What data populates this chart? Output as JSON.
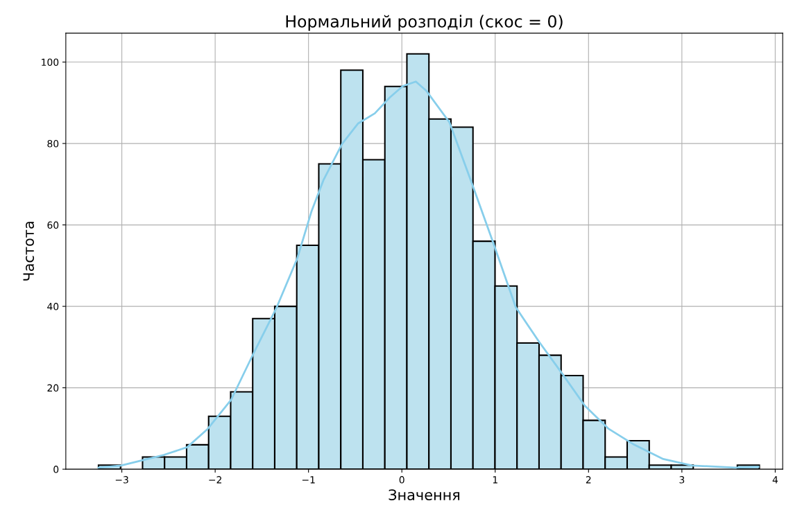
{
  "chart_data": {
    "type": "histogram",
    "title": "Нормальний розподіл (скос = 0)",
    "xlabel": "Значення",
    "ylabel": "Частота",
    "bins": [
      -3.25,
      -3.014,
      -2.778,
      -2.542,
      -2.306,
      -2.07,
      -1.834,
      -1.598,
      -1.362,
      -1.126,
      -0.89,
      -0.654,
      -0.418,
      -0.182,
      0.054,
      0.29,
      0.526,
      0.762,
      0.998,
      1.234,
      1.47,
      1.706,
      1.942,
      2.178,
      2.414,
      2.65,
      2.886,
      3.122,
      3.358,
      3.594,
      3.83
    ],
    "series": [
      {
        "color": "#bde2ef",
        "values": [
          1,
          0,
          3,
          3,
          6,
          13,
          19,
          37,
          40,
          55,
          75,
          98,
          76,
          94,
          102,
          86,
          84,
          56,
          45,
          31,
          28,
          23,
          12,
          3,
          7,
          1,
          1,
          0,
          0,
          1
        ]
      },
      {
        "type": "line",
        "color": "#87ceeb",
        "x": [
          -3.25,
          -3.01,
          -2.55,
          -2.3,
          -2.08,
          -1.83,
          -1.59,
          -1.34,
          -1.12,
          -0.97,
          -0.84,
          -0.64,
          -0.47,
          -0.29,
          -0.13,
          0.01,
          0.15,
          0.26,
          0.51,
          0.76,
          0.97,
          1.22,
          1.47,
          1.72,
          1.96,
          2.21,
          2.49,
          2.8,
          3.11,
          3.57,
          3.82
        ],
        "values": [
          0.4,
          0.9,
          3.5,
          5.4,
          9.9,
          17,
          28.4,
          39.8,
          51.8,
          63.2,
          71,
          79.9,
          84.9,
          87.4,
          91.3,
          94.1,
          95.2,
          93,
          85.2,
          69.6,
          56.2,
          39.8,
          31.3,
          23.4,
          15.6,
          10,
          6,
          2.5,
          0.9,
          0.4,
          0.6
        ]
      }
    ],
    "xlim": [
      -3.6,
      4.08
    ],
    "ylim": [
      0,
      107.1
    ],
    "xticks": [
      {
        "value": -3,
        "label": "−3"
      },
      {
        "value": -2,
        "label": "−2"
      },
      {
        "value": -1,
        "label": "−1"
      },
      0,
      1,
      2,
      3,
      4
    ],
    "yticks": [
      0,
      20,
      40,
      60,
      80,
      100
    ],
    "grid": true
  }
}
